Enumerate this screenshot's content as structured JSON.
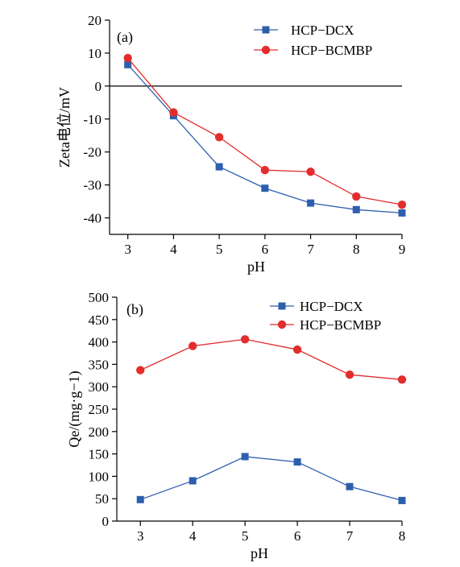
{
  "chart_data": [
    {
      "type": "line",
      "panel_label": "(a)",
      "xlabel": "pH",
      "ylabel": "Zeta电位/mV",
      "x": [
        3,
        4,
        5,
        6,
        7,
        8,
        9
      ],
      "xlim": [
        2.6,
        9
      ],
      "ylim": [
        -45,
        20
      ],
      "x_ticks": [
        "3",
        "4",
        "5",
        "6",
        "7",
        "8",
        "9"
      ],
      "y_ticks": [
        "20",
        "10",
        "0",
        "-10",
        "-20",
        "-30",
        "-40"
      ],
      "y_tick_values": [
        20,
        10,
        0,
        -10,
        -20,
        -30,
        -40
      ],
      "zero_line": true,
      "grid": false,
      "legend_position": "top-right",
      "series": [
        {
          "name": "HCP−DCX",
          "color": "#2e5fae",
          "marker": "square",
          "values": [
            6.5,
            -9,
            -24.5,
            -31,
            -35.5,
            -37.5,
            -38.5
          ]
        },
        {
          "name": "HCP−BCMBP",
          "color": "#e32d2d",
          "marker": "circle",
          "values": [
            8.5,
            -8,
            -15.5,
            -25.5,
            -26,
            -33.5,
            -36
          ]
        }
      ]
    },
    {
      "type": "line",
      "panel_label": "(b)",
      "xlabel": "pH",
      "ylabel": "Qe/(mg·g−1)",
      "x": [
        3,
        4,
        5,
        6,
        7,
        8
      ],
      "xlim": [
        2.55,
        8
      ],
      "ylim": [
        0,
        500
      ],
      "x_ticks": [
        "3",
        "4",
        "5",
        "6",
        "7",
        "8"
      ],
      "y_ticks": [
        "500",
        "450",
        "400",
        "350",
        "300",
        "250",
        "200",
        "150",
        "100",
        "50",
        "0"
      ],
      "y_tick_values": [
        500,
        450,
        400,
        350,
        300,
        250,
        200,
        150,
        100,
        50,
        0
      ],
      "grid": false,
      "legend_position": "top-right",
      "series": [
        {
          "name": "HCP−DCX",
          "color": "#2e5fae",
          "marker": "square",
          "values": [
            48,
            90,
            144,
            132,
            77,
            46
          ]
        },
        {
          "name": "HCP−BCMBP",
          "color": "#e32d2d",
          "marker": "circle",
          "values": [
            337,
            391,
            406,
            383,
            327,
            316
          ]
        }
      ]
    }
  ]
}
